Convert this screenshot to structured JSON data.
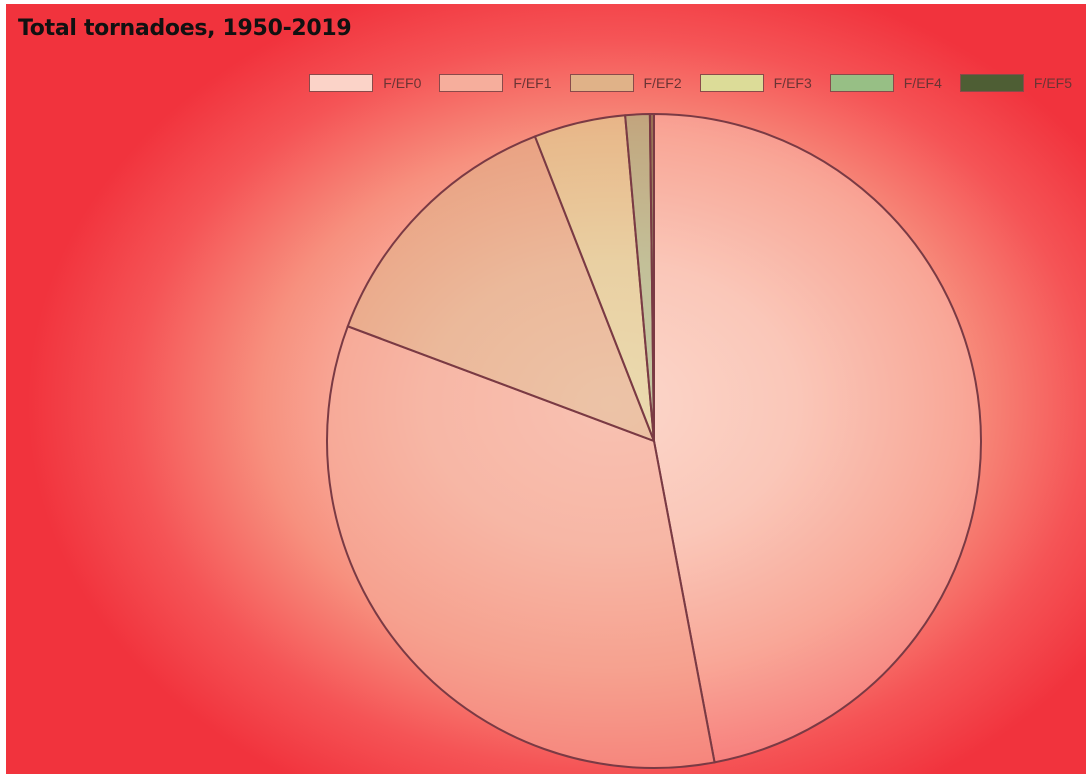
{
  "chart_data": {
    "type": "pie",
    "title": "Total tornadoes, 1950-2019",
    "legend_position": "top-right",
    "categories": [
      "F/EF0",
      "F/EF1",
      "F/EF2",
      "F/EF3",
      "F/EF4",
      "F/EF5"
    ],
    "values": [
      46.8,
      33.5,
      13.3,
      4.5,
      1.2,
      0.2
    ],
    "colors": [
      "#fbd3c8",
      "#f6ae9c",
      "#e0b288",
      "#dcdc98",
      "#97bf85",
      "#4e5e34"
    ]
  }
}
